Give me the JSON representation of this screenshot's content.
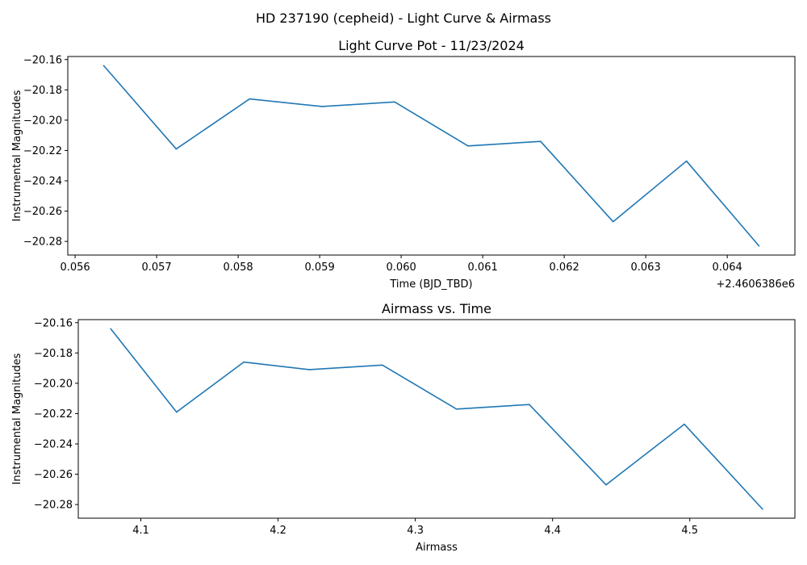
{
  "figure": {
    "title": "HD 237190 (cepheid) - Light Curve & Airmass"
  },
  "chart_data": [
    {
      "type": "line",
      "title": "Light Curve Pot - 11/23/2024",
      "xlabel": "Time (BJD_TBD)",
      "ylabel": "Instrumental Magnitudes",
      "x_offset_label": "+2.4606386e6",
      "x_offset": 2460638.6,
      "x": [
        0.05635,
        0.05724,
        0.05814,
        0.05903,
        0.05992,
        0.06082,
        0.06171,
        0.0626,
        0.0635,
        0.06439
      ],
      "y": [
        -20.164,
        -20.219,
        -20.186,
        -20.191,
        -20.188,
        -20.217,
        -20.214,
        -20.267,
        -20.227,
        -20.283
      ],
      "xlim": [
        0.05591,
        0.06483
      ],
      "ylim": [
        -20.289,
        -20.158
      ],
      "xticks": [
        0.056,
        0.057,
        0.058,
        0.059,
        0.06,
        0.061,
        0.062,
        0.063,
        0.064
      ],
      "xtick_labels": [
        "0.056",
        "0.057",
        "0.058",
        "0.059",
        "0.060",
        "0.061",
        "0.062",
        "0.063",
        "0.064"
      ],
      "yticks": [
        -20.16,
        -20.18,
        -20.2,
        -20.22,
        -20.24,
        -20.26,
        -20.28
      ],
      "ytick_labels": [
        "−20.16",
        "−20.18",
        "−20.20",
        "−20.22",
        "−20.24",
        "−20.26",
        "−20.28"
      ],
      "grid": false,
      "color": "#1f77b4"
    },
    {
      "type": "line",
      "title": "Airmass vs. Time",
      "xlabel": "Airmass",
      "ylabel": "Instrumental Magnitudes",
      "x": [
        4.078,
        4.126,
        4.175,
        4.223,
        4.276,
        4.33,
        4.383,
        4.439,
        4.496,
        4.553
      ],
      "y": [
        -20.164,
        -20.219,
        -20.186,
        -20.191,
        -20.188,
        -20.217,
        -20.214,
        -20.267,
        -20.227,
        -20.283
      ],
      "xlim": [
        4.0544,
        4.5766
      ],
      "ylim": [
        -20.289,
        -20.158
      ],
      "xticks": [
        4.1,
        4.2,
        4.3,
        4.4,
        4.5
      ],
      "xtick_labels": [
        "4.1",
        "4.2",
        "4.3",
        "4.4",
        "4.5"
      ],
      "yticks": [
        -20.16,
        -20.18,
        -20.2,
        -20.22,
        -20.24,
        -20.26,
        -20.28
      ],
      "ytick_labels": [
        "−20.16",
        "−20.18",
        "−20.20",
        "−20.22",
        "−20.24",
        "−20.26",
        "−20.28"
      ],
      "grid": false,
      "color": "#1f77b4"
    }
  ]
}
